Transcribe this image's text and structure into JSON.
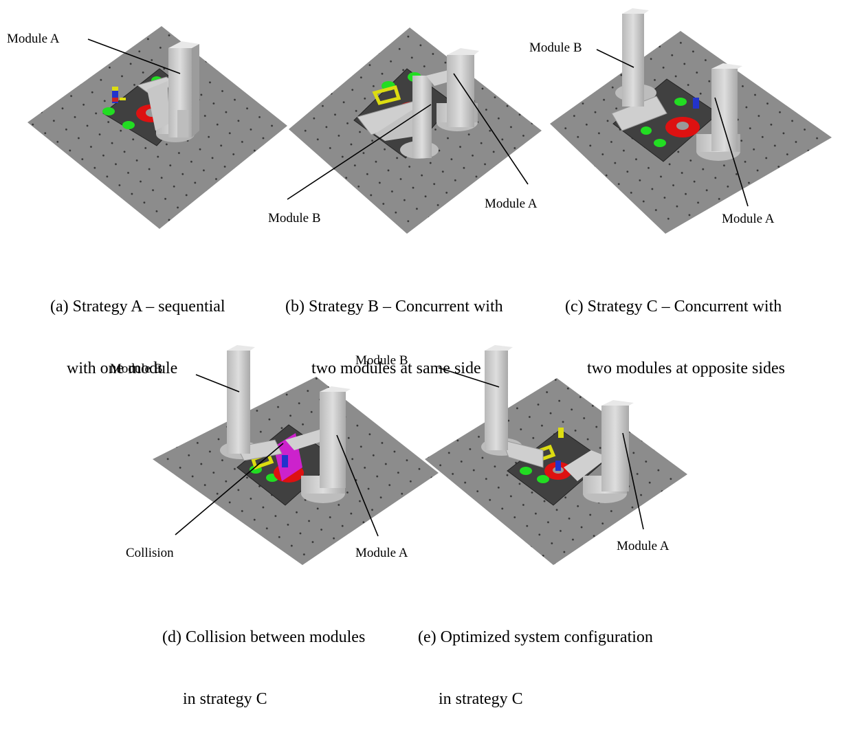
{
  "figure": {
    "panels": [
      {
        "id": "a",
        "caption_line1": "(a) Strategy A – sequential",
        "caption_line2": "with one module",
        "labels": [
          "Module A"
        ]
      },
      {
        "id": "b",
        "caption_line1": "(b) Strategy B – Concurrent with",
        "caption_line2": "two modules at same side",
        "labels": [
          "Module B",
          "Module A"
        ]
      },
      {
        "id": "c",
        "caption_line1": "(c) Strategy C – Concurrent with",
        "caption_line2": "two modules at opposite sides",
        "labels": [
          "Module B",
          "Module A"
        ]
      },
      {
        "id": "d",
        "caption_line1": "(d) Collision between modules",
        "caption_line2": "in strategy C",
        "labels": [
          "Module B",
          "Collision",
          "Module A"
        ]
      },
      {
        "id": "e",
        "caption_line1": "(e) Optimized system configuration",
        "caption_line2": "in strategy C",
        "labels": [
          "Module B",
          "Module A"
        ]
      }
    ]
  }
}
